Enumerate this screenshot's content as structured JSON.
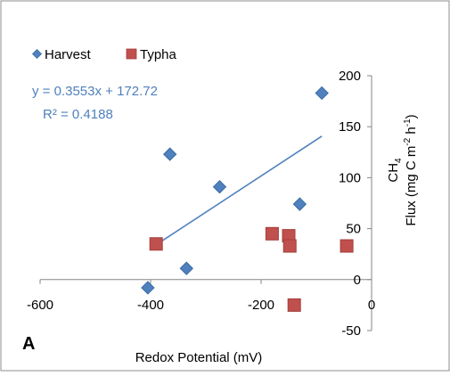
{
  "chart_data": {
    "type": "scatter",
    "panel_label": "A",
    "xlabel": "Redox Potential (mV)",
    "ylabel": {
      "line1_prefix": "CH",
      "line1_sub": "4",
      "line2_prefix": "Flux (mg C m",
      "line2_sup1": "-2",
      "line2_mid": " h",
      "line2_sup2": "-1",
      "line2_suffix": ")"
    },
    "xlim": [
      -600,
      0
    ],
    "ylim": [
      -50,
      200
    ],
    "xticks": [
      -600,
      -400,
      -200,
      0
    ],
    "xtick_labels": [
      "-600",
      "-400",
      "-200",
      "0"
    ],
    "yticks": [
      -50,
      0,
      50,
      100,
      150,
      200
    ],
    "ytick_labels": [
      "-50",
      "0",
      "50",
      "100",
      "150",
      "200"
    ],
    "grid": false,
    "legend_position": "top-left",
    "series": [
      {
        "name": "Harvest",
        "marker": "diamond",
        "color": "#4F81BD",
        "points": [
          {
            "x": -405,
            "y": -8
          },
          {
            "x": -365,
            "y": 123
          },
          {
            "x": -335,
            "y": 11
          },
          {
            "x": -275,
            "y": 91
          },
          {
            "x": -130,
            "y": 74
          },
          {
            "x": -90,
            "y": 183
          }
        ]
      },
      {
        "name": "Typha",
        "marker": "square",
        "color": "#C0504D",
        "points": [
          {
            "x": -390,
            "y": 35
          },
          {
            "x": -180,
            "y": 45
          },
          {
            "x": -150,
            "y": 43
          },
          {
            "x": -148,
            "y": 33
          },
          {
            "x": -140,
            "y": -25
          },
          {
            "x": -45,
            "y": 33
          }
        ]
      }
    ],
    "trendline": {
      "series": "Harvest",
      "slope": 0.3553,
      "intercept": 172.72,
      "x_range": [
        -390,
        -90
      ],
      "color": "#4F81BD",
      "equation_text": "y = 0.3553x + 172.72",
      "r2_text": "R² = 0.4188"
    }
  }
}
